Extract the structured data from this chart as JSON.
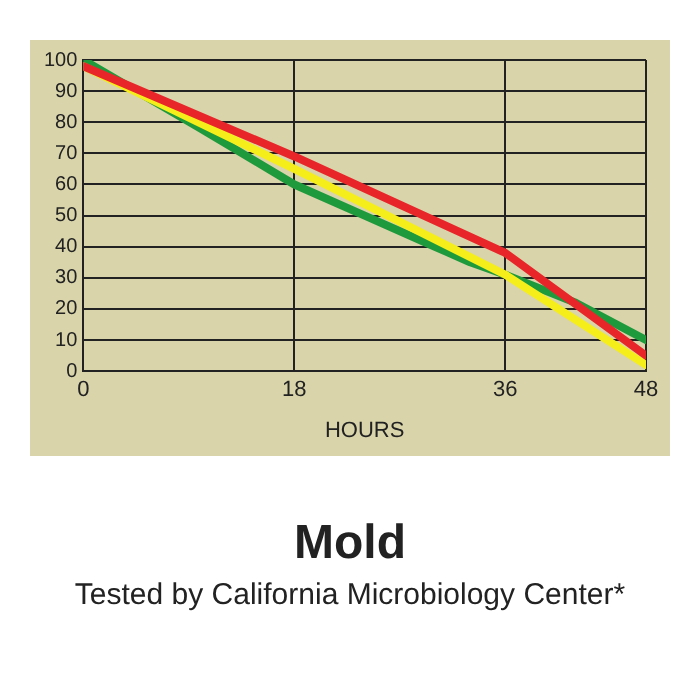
{
  "chart_data": {
    "type": "line",
    "title": "Mold",
    "subtitle": "Tested by California Microbiology Center*",
    "xlabel": "HOURS",
    "xlim": [
      0,
      48
    ],
    "xticks": [
      0,
      18,
      36,
      48
    ],
    "ylim": [
      0,
      100
    ],
    "yticks": [
      0,
      10,
      20,
      30,
      40,
      50,
      60,
      70,
      80,
      90,
      100
    ],
    "grid": true,
    "legend": false,
    "marker": "none",
    "line_style": "solid",
    "series": [
      {
        "color": "#e8262a",
        "x": [
          0,
          18,
          36,
          48
        ],
        "values": [
          98,
          69,
          38,
          5
        ]
      },
      {
        "color": "#f5ee1a",
        "x": [
          0,
          18,
          36,
          48
        ],
        "values": [
          98,
          65,
          31,
          2
        ]
      },
      {
        "color": "#1e9a3c",
        "x": [
          0,
          10,
          18,
          24,
          30,
          33,
          36,
          42,
          48
        ],
        "values": [
          100,
          78,
          60,
          50,
          40,
          35,
          31,
          22,
          10
        ]
      }
    ]
  }
}
